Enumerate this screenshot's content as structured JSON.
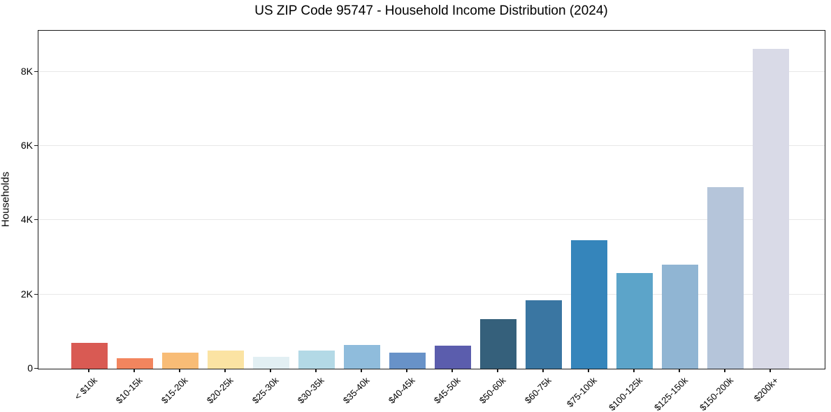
{
  "figure": {
    "background": "#ffffff",
    "spine_color": "#1a1a1a",
    "grid_color": "#e8e8e8"
  },
  "chart_data": {
    "type": "bar",
    "title": "US ZIP Code 95747 - Household Income Distribution (2024)",
    "xlabel": "",
    "ylabel": "Households",
    "categories": [
      "< $10k",
      "$10-15k",
      "$15-20k",
      "$20-25k",
      "$25-30k",
      "$30-35k",
      "$35-40k",
      "$40-45k",
      "$45-50k",
      "$50-60k",
      "$60-75k",
      "$75-100k",
      "$100-125k",
      "$125-150k",
      "$150-200k",
      "$200k+"
    ],
    "values": [
      700,
      280,
      430,
      480,
      325,
      490,
      640,
      425,
      625,
      1340,
      1840,
      3460,
      2575,
      2800,
      4880,
      8615
    ],
    "bar_colors": [
      "#d95a53",
      "#f2855e",
      "#f8bc76",
      "#fbe3a3",
      "#e2eff3",
      "#b3d9e6",
      "#8fbcdc",
      "#6892c8",
      "#5b5dad",
      "#35607b",
      "#3a76a2",
      "#3585bb",
      "#5ca4c9",
      "#90b5d3",
      "#b5c5da",
      "#d9dae7"
    ],
    "ylim": [
      0,
      9100
    ],
    "yticks": {
      "values": [
        0,
        2000,
        4000,
        6000,
        8000
      ],
      "labels": [
        "0",
        "2K",
        "4K",
        "6K",
        "8K"
      ]
    },
    "grid": "horizontal",
    "legend": "none"
  }
}
